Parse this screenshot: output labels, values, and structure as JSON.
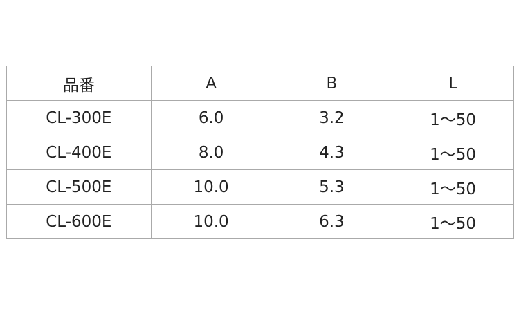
{
  "table": {
    "headers": [
      "品番",
      "A",
      "B",
      "L"
    ],
    "rows": [
      [
        "CL-300E",
        "6.0",
        "3.2",
        "1〜50"
      ],
      [
        "CL-400E",
        "8.0",
        "4.3",
        "1〜50"
      ],
      [
        "CL-500E",
        "10.0",
        "5.3",
        "1〜50"
      ],
      [
        "CL-600E",
        "10.0",
        "6.3",
        "1〜50"
      ]
    ]
  }
}
